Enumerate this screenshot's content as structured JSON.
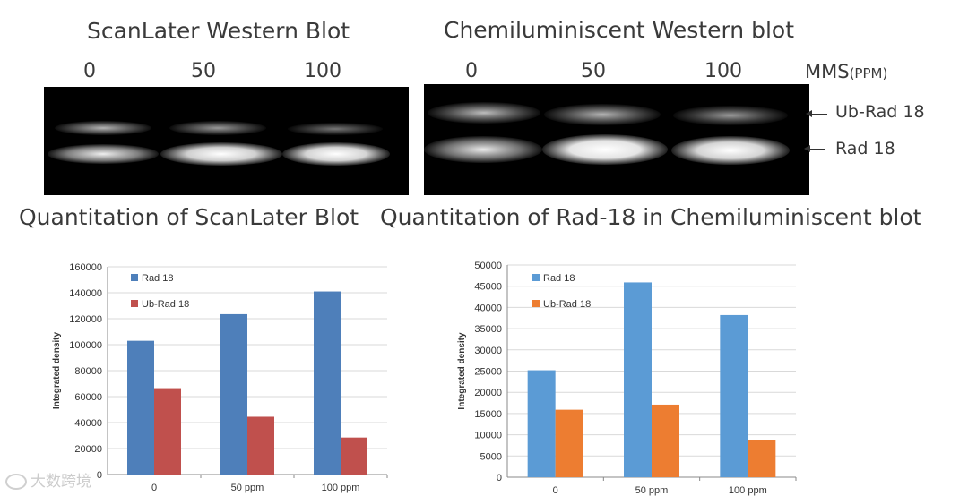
{
  "headings": {
    "scanlater_blot": "ScanLater Western Blot",
    "chemi_blot": "Chemiluminiscent Western blot",
    "scanlater_quant": "Quantitation of ScanLater  Blot",
    "chemi_quant": "Quantitation of Rad-18 in Chemiluminiscent  blot"
  },
  "blot_lanes": {
    "left": [
      "0",
      "50",
      "100"
    ],
    "right": [
      "0",
      "50",
      "100"
    ],
    "axis_label_main": "MMS",
    "axis_label_unit": "(PPM)"
  },
  "band_labels": {
    "upper": "Ub-Rad 18",
    "lower": "Rad 18"
  },
  "watermark": "大数跨境",
  "chart_data": [
    {
      "type": "bar",
      "title": "",
      "xlabel": "",
      "ylabel": "Integrated density",
      "categories": [
        "0",
        "50 ppm",
        "100 ppm"
      ],
      "ylim": [
        0,
        160000
      ],
      "yticks": [
        0,
        20000,
        40000,
        60000,
        80000,
        100000,
        120000,
        140000,
        160000
      ],
      "ytick_labels": [
        "0",
        "20000",
        "40000",
        "60000",
        "80000",
        "100000",
        "120000",
        "140000",
        "160000"
      ],
      "grid": true,
      "legend_position": "top-left",
      "series": [
        {
          "name": "Rad 18",
          "values": [
            103000,
            123500,
            141000
          ],
          "color": "#4e7fba"
        },
        {
          "name": "Ub-Rad 18",
          "values": [
            66500,
            44500,
            28500
          ],
          "color": "#c0504d"
        }
      ]
    },
    {
      "type": "bar",
      "title": "",
      "xlabel": "",
      "ylabel": "Integrated density",
      "categories": [
        "0",
        "50 ppm",
        "100 ppm"
      ],
      "ylim": [
        0,
        50000
      ],
      "yticks": [
        0,
        5000,
        10000,
        15000,
        20000,
        25000,
        30000,
        35000,
        40000,
        45000,
        50000
      ],
      "ytick_labels": [
        "0",
        "5000",
        "10000",
        "15000",
        "20000",
        "25000",
        "30000",
        "35000",
        "40000",
        "45000",
        "50000"
      ],
      "grid": true,
      "legend_position": "top-left",
      "series": [
        {
          "name": "Rad 18",
          "values": [
            25200,
            45900,
            38200
          ],
          "color": "#5b9bd5"
        },
        {
          "name": "Ub-Rad 18",
          "values": [
            15900,
            17100,
            8800
          ],
          "color": "#ed7d31"
        }
      ]
    }
  ]
}
